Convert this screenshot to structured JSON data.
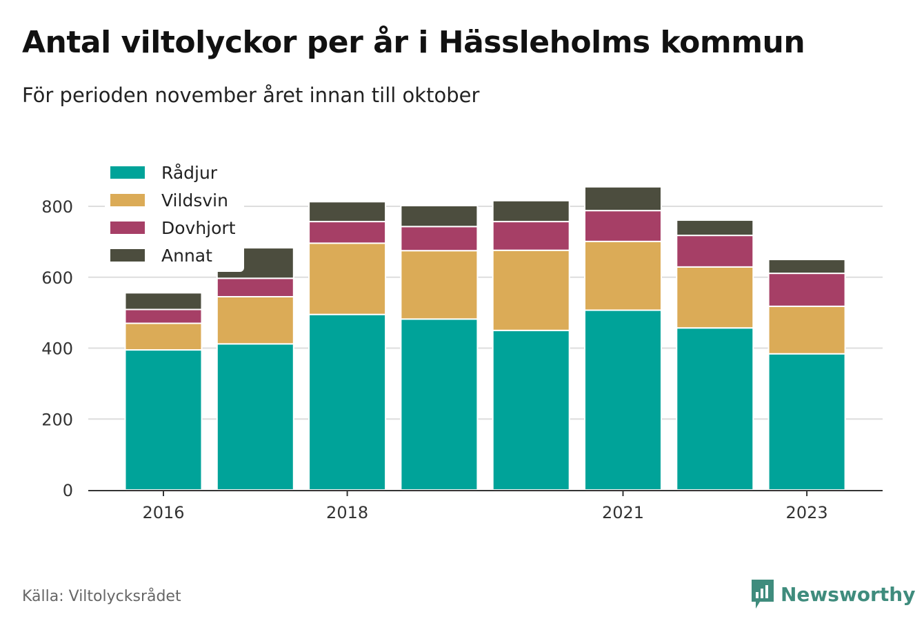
{
  "header": {
    "title": "Antal viltolyckor per år i Hässleholms kommun",
    "subtitle": "För perioden november året innan till oktober"
  },
  "footer": {
    "source": "Källa: Viltolycksrådet",
    "brand": "Newsworthy",
    "brand_icon": "newsworthy-logo-icon",
    "brand_color": "#3f8c7d"
  },
  "chart_data": {
    "type": "bar",
    "stacked": true,
    "categories": [
      "2016",
      "2017",
      "2018",
      "2019",
      "2020",
      "2021",
      "2022",
      "2023"
    ],
    "xticks": [
      "2016",
      "2018",
      "2021",
      "2023"
    ],
    "series": [
      {
        "name": "Rådjur",
        "color": "#00a399",
        "values": [
          395,
          412,
          495,
          482,
          450,
          507,
          457,
          384
        ]
      },
      {
        "name": "Vildsvin",
        "color": "#dbab57",
        "values": [
          75,
          133,
          201,
          193,
          226,
          194,
          172,
          134
        ]
      },
      {
        "name": "Dovhjort",
        "color": "#a63f66",
        "values": [
          39,
          52,
          61,
          68,
          81,
          87,
          89,
          93
        ]
      },
      {
        "name": "Annat",
        "color": "#4c4d3e",
        "values": [
          47,
          86,
          56,
          59,
          59,
          67,
          43,
          39
        ]
      }
    ],
    "yticks": [
      0,
      200,
      400,
      600,
      800
    ],
    "ylim": [
      0,
      880
    ],
    "grid": true,
    "legend_position": "top-left"
  }
}
